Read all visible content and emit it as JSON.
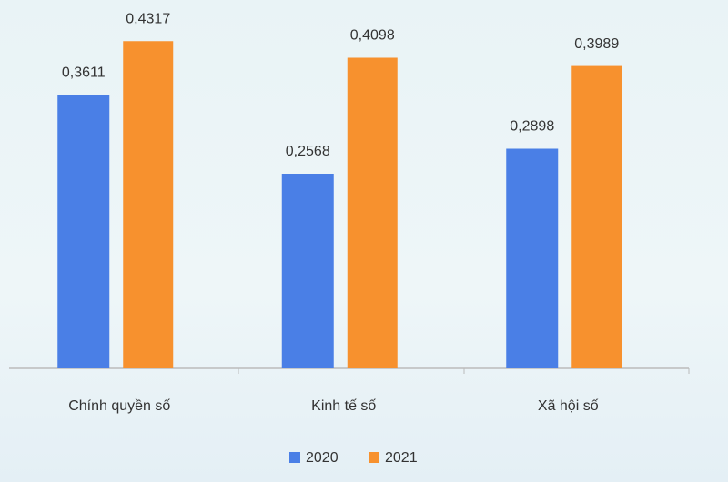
{
  "chart_data": {
    "type": "bar",
    "categories": [
      "Chính quyền số",
      "Kinh tế số",
      "Xã hội số"
    ],
    "series": [
      {
        "name": "2020",
        "color": "#4a7fe6",
        "values": [
          0.3611,
          0.2568,
          0.2898
        ],
        "value_labels": [
          "0,3611",
          "0,2568",
          "0,2898"
        ]
      },
      {
        "name": "2021",
        "color": "#f7912e",
        "values": [
          0.4317,
          0.4098,
          0.3989
        ],
        "value_labels": [
          "0,4317",
          "0,4098",
          "0,3989"
        ]
      }
    ],
    "ylim": [
      0,
      0.48
    ]
  }
}
